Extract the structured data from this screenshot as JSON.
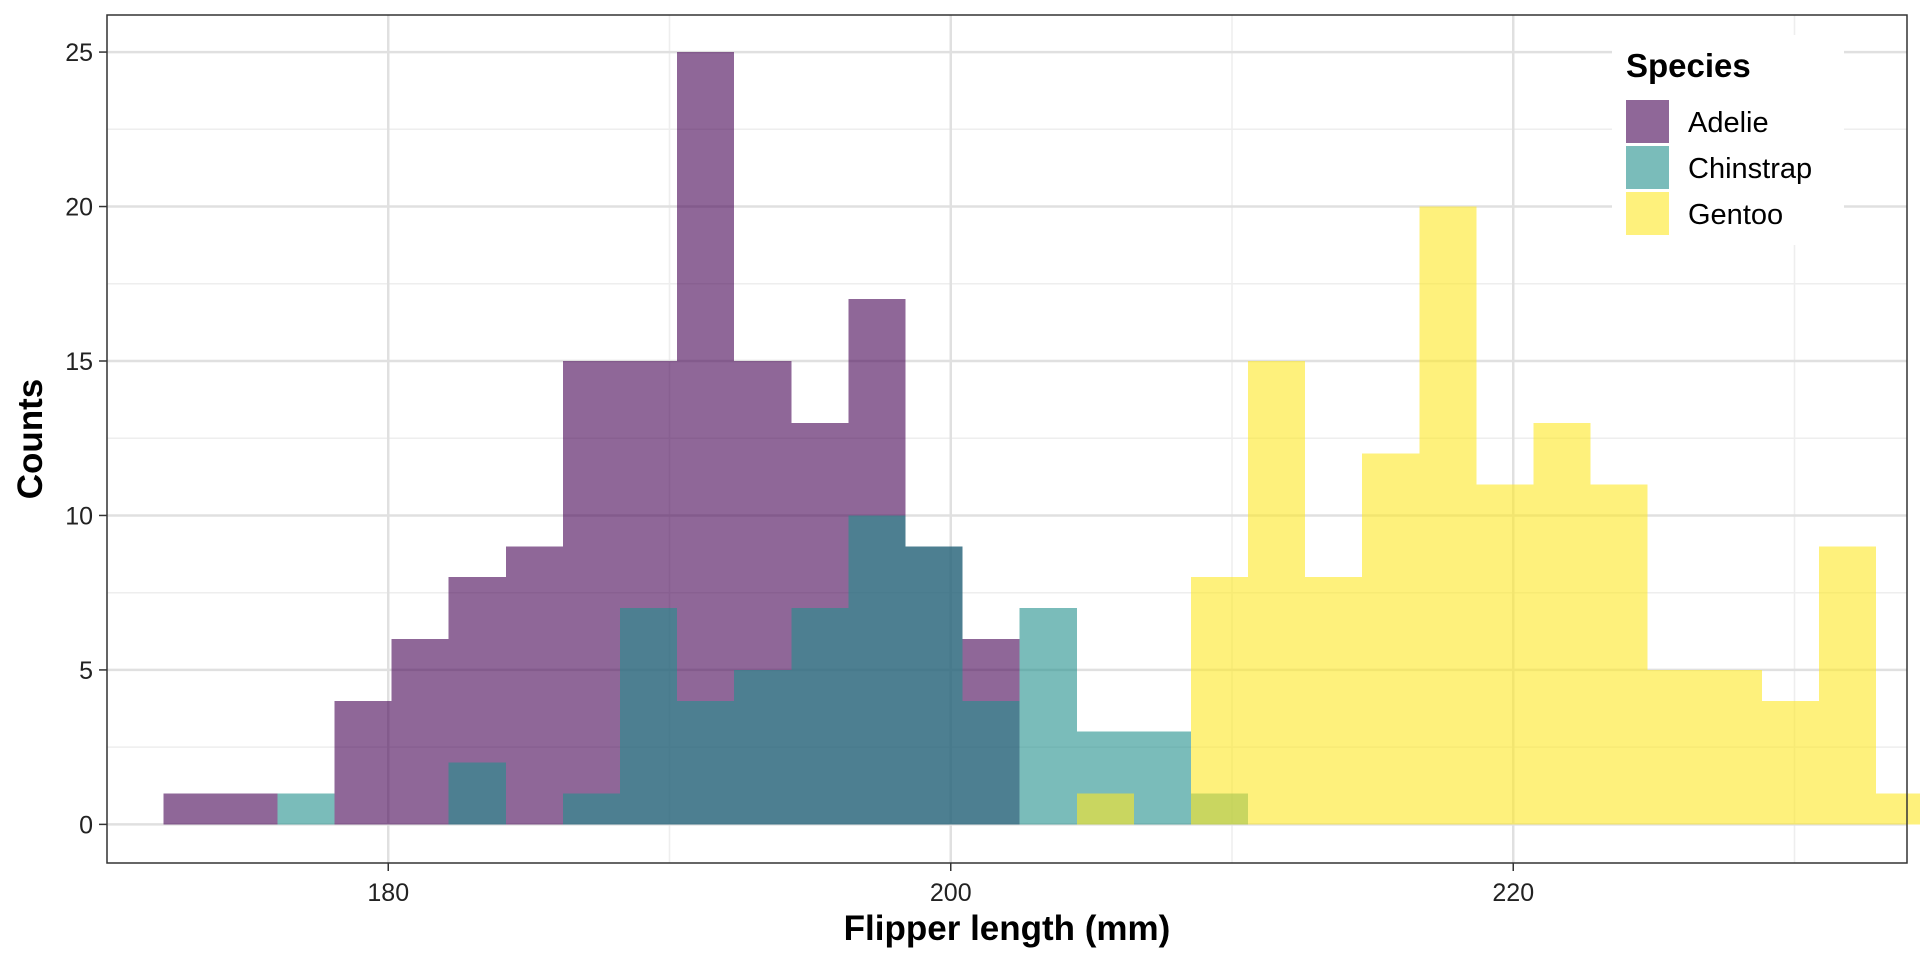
{
  "chart_data": {
    "type": "bar",
    "subtype": "overlapping-histogram",
    "xlabel": "Flipper length (mm)",
    "ylabel": "Counts",
    "xlim": [
      170,
      234
    ],
    "ylim": [
      -1.25,
      26.2
    ],
    "x_ticks": [
      180,
      200,
      220
    ],
    "y_ticks": [
      0,
      5,
      10,
      15,
      20,
      25
    ],
    "x_minor_ticks": [
      170,
      190,
      210,
      230
    ],
    "y_minor_ticks": [
      2.5,
      7.5,
      12.5,
      17.5,
      22.5
    ],
    "bin_width": 2.03,
    "bin_start": 172.0,
    "grid": true,
    "legend": {
      "title": "Species",
      "position": "top-right"
    },
    "opacity": 0.6,
    "series": [
      {
        "name": "Adelie",
        "color": "#440154",
        "values": [
          1,
          1,
          0,
          4,
          6,
          8,
          9,
          15,
          15,
          25,
          15,
          13,
          17,
          9,
          6,
          0,
          0,
          0,
          0,
          0,
          0,
          0,
          0,
          0,
          0,
          0,
          0,
          0,
          0,
          0,
          0,
          0
        ]
      },
      {
        "name": "Chinstrap",
        "color": "#21908C",
        "values": [
          0,
          0,
          1,
          0,
          0,
          2,
          0,
          1,
          7,
          4,
          5,
          7,
          10,
          9,
          4,
          7,
          3,
          3,
          1,
          0,
          0,
          0,
          0,
          0,
          0,
          0,
          0,
          0,
          0,
          0,
          0,
          0
        ]
      },
      {
        "name": "Gentoo",
        "color": "#FDE725",
        "values": [
          0,
          0,
          0,
          0,
          0,
          0,
          0,
          0,
          0,
          0,
          0,
          0,
          0,
          0,
          0,
          0,
          1,
          0,
          8,
          15,
          8,
          12,
          20,
          11,
          13,
          11,
          5,
          5,
          4,
          9,
          1,
          0
        ]
      }
    ]
  }
}
